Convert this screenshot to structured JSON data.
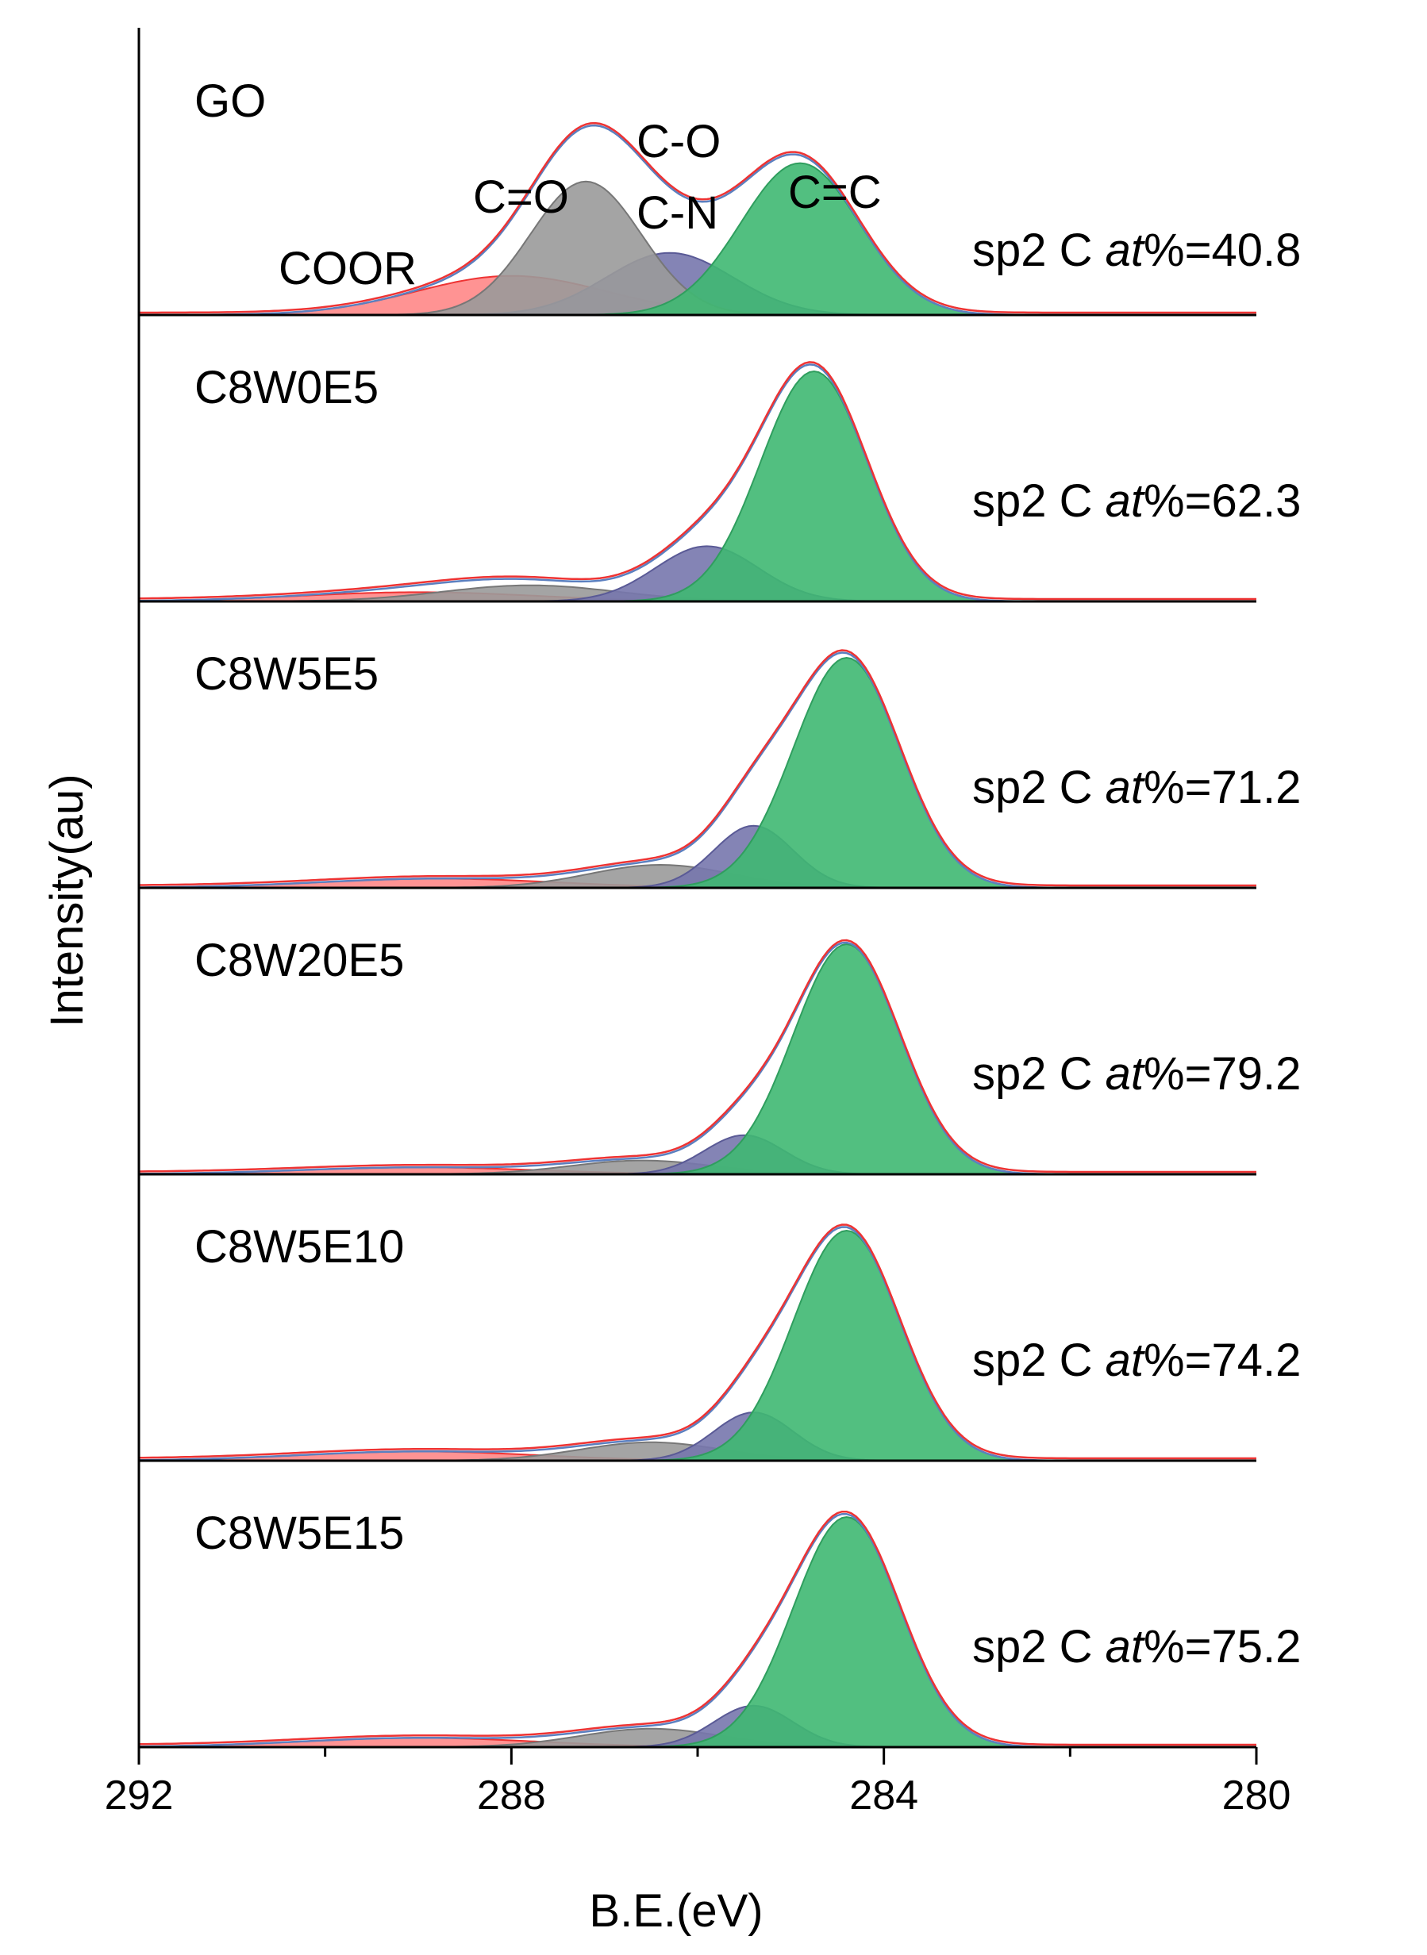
{
  "chart_data": {
    "type": "line",
    "subtype": "stacked XPS C1s spectra with Gaussian peak deconvolution",
    "xlabel": "B.E.(eV)",
    "ylabel": "Intensity(au)",
    "xlim": [
      292,
      280
    ],
    "x_ticks": [
      "292",
      "288",
      "284",
      "280"
    ],
    "peak_labels": {
      "coor": "COOR",
      "c_double_o": "C=O",
      "c_o": "C-O",
      "c_n": "C-N",
      "c_double_c": "C=C"
    },
    "components": [
      {
        "name": "C=C",
        "color": "#3fb872",
        "edge": "#2f9e5e"
      },
      {
        "name": "C-O / C-N",
        "color": "#7777ad",
        "edge": "#5a5a96"
      },
      {
        "name": "C=O",
        "color": "#9a9a9a",
        "edge": "#777777"
      },
      {
        "name": "COOR",
        "color": "#ff6f6f",
        "edge": "#ee3333"
      }
    ],
    "envelope_color": "#ee3333",
    "fit_color": "#5b7fbf",
    "series": [
      {
        "name": "GO",
        "annotation_prefix": "sp2 C ",
        "annotation_italic": "at",
        "annotation_suffix": "%=40.8",
        "peaks": [
          {
            "component": "C=C",
            "center": 284.9,
            "height": 0.66,
            "fwhm": 1.5
          },
          {
            "component": "C-O / C-N",
            "center": 286.3,
            "height": 0.27,
            "fwhm": 1.6
          },
          {
            "component": "C=O",
            "center": 287.2,
            "height": 0.58,
            "fwhm": 1.4
          },
          {
            "component": "COOR",
            "center": 288.0,
            "height": 0.17,
            "fwhm": 2.4
          }
        ]
      },
      {
        "name": "C8W0E5",
        "annotation_prefix": "sp2 C ",
        "annotation_italic": "at",
        "annotation_suffix": "%=62.3",
        "peaks": [
          {
            "component": "C=C",
            "center": 284.75,
            "height": 1.0,
            "fwhm": 1.35
          },
          {
            "component": "C-O / C-N",
            "center": 285.9,
            "height": 0.24,
            "fwhm": 1.3
          },
          {
            "component": "C=O",
            "center": 287.8,
            "height": 0.07,
            "fwhm": 2.2
          },
          {
            "component": "COOR",
            "center": 289.0,
            "height": 0.04,
            "fwhm": 3.0
          }
        ]
      },
      {
        "name": "C8W5E5",
        "annotation_prefix": "sp2 C ",
        "annotation_italic": "at",
        "annotation_suffix": "%=71.2",
        "peaks": [
          {
            "component": "C=C",
            "center": 284.4,
            "height": 1.0,
            "fwhm": 1.35
          },
          {
            "component": "C-O / C-N",
            "center": 285.4,
            "height": 0.27,
            "fwhm": 1.0
          },
          {
            "component": "C=O",
            "center": 286.4,
            "height": 0.1,
            "fwhm": 1.8
          },
          {
            "component": "COOR",
            "center": 288.8,
            "height": 0.04,
            "fwhm": 3.0
          }
        ]
      },
      {
        "name": "C8W20E5",
        "annotation_prefix": "sp2 C ",
        "annotation_italic": "at",
        "annotation_suffix": "%=79.2",
        "peaks": [
          {
            "component": "C=C",
            "center": 284.4,
            "height": 1.0,
            "fwhm": 1.35
          },
          {
            "component": "C-O / C-N",
            "center": 285.5,
            "height": 0.17,
            "fwhm": 1.0
          },
          {
            "component": "C=O",
            "center": 286.6,
            "height": 0.06,
            "fwhm": 1.8
          },
          {
            "component": "COOR",
            "center": 289.0,
            "height": 0.03,
            "fwhm": 3.0
          }
        ]
      },
      {
        "name": "C8W5E10",
        "annotation_prefix": "sp2 C ",
        "annotation_italic": "at",
        "annotation_suffix": "%=74.2",
        "peaks": [
          {
            "component": "C=C",
            "center": 284.4,
            "height": 1.0,
            "fwhm": 1.35
          },
          {
            "component": "C-O / C-N",
            "center": 285.4,
            "height": 0.21,
            "fwhm": 1.0
          },
          {
            "component": "C=O",
            "center": 286.5,
            "height": 0.08,
            "fwhm": 1.8
          },
          {
            "component": "COOR",
            "center": 289.0,
            "height": 0.04,
            "fwhm": 3.0
          }
        ]
      },
      {
        "name": "C8W5E15",
        "annotation_prefix": "sp2 C ",
        "annotation_italic": "at",
        "annotation_suffix": "%=75.2",
        "peaks": [
          {
            "component": "C=C",
            "center": 284.4,
            "height": 1.0,
            "fwhm": 1.35
          },
          {
            "component": "C-O / C-N",
            "center": 285.4,
            "height": 0.18,
            "fwhm": 1.0
          },
          {
            "component": "C=O",
            "center": 286.5,
            "height": 0.08,
            "fwhm": 1.8
          },
          {
            "component": "COOR",
            "center": 289.0,
            "height": 0.04,
            "fwhm": 3.0
          }
        ]
      }
    ]
  }
}
